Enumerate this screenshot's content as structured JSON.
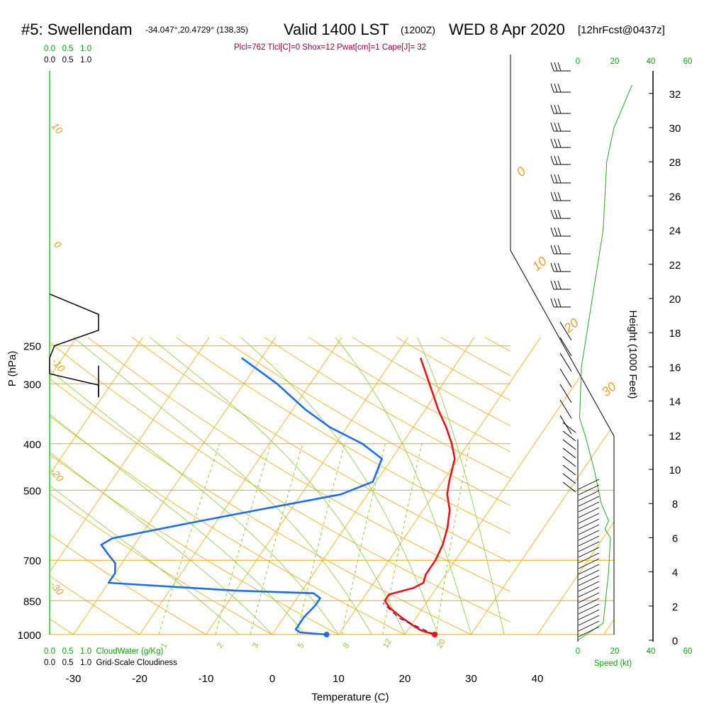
{
  "title": {
    "station": "#5: Swellendam",
    "coords": "-34.047°,20.4729° (138,35)",
    "valid": "Valid 1400 LST",
    "zulu": "(1200Z)",
    "date": "WED 8 Apr 2020",
    "forecast": "[12hrFcst@0437z]"
  },
  "indices": "Plcl=762 Tlcl[C]=0 Shox=12 Pwat[cm]=1 Cape[J]= 32",
  "top_scale": {
    "green": "0.0   0.5   1.0",
    "black": "0.0   0.5   1.0"
  },
  "bottom_scales": {
    "cloudwater": "0.0   0.5   1.0  CloudWater (g/Kg)",
    "cloudiness": "0.0   0.5   1.0  Grid-Scale Cloudiness"
  },
  "speed_label": "Speed (kt)",
  "colors": {
    "temperature": "#ee1111",
    "dewpoint": "#1a6fe8",
    "parcel": "#330066",
    "isotherm": "#f0a800",
    "mixing_ratio": "#88cc33",
    "speed_profile": "#22aa22",
    "label_green": "#00aa00",
    "indices": "#990044"
  },
  "chart_data": {
    "type": "line",
    "subtype": "skew-T log-P sounding",
    "xlabel": "Temperature (C)",
    "ylabel": "P (hPa)",
    "y2label": "Height (1000 Feet)",
    "xlim": [
      -35,
      36
    ],
    "ylim_hpa": [
      1000,
      250
    ],
    "x_ticks": [
      "-30",
      "-20",
      "-10",
      "0",
      "10",
      "20",
      "30",
      "40"
    ],
    "pressure_ticks": [
      "250",
      "300",
      "400",
      "500",
      "700",
      "850",
      "1000"
    ],
    "height_ticks": [
      "0",
      "2",
      "4",
      "6",
      "8",
      "10",
      "12",
      "14",
      "16",
      "18",
      "20",
      "22",
      "24",
      "26",
      "28",
      "30",
      "32"
    ],
    "speed_ticks": [
      "0",
      "20",
      "40",
      "60"
    ],
    "isotherm_labels": [
      "0",
      "10",
      "20",
      "30"
    ],
    "adiabat_labels": [
      "10",
      "0",
      "-10",
      "-20",
      "-30"
    ],
    "mixing_ratio_labels": [
      "1",
      "2",
      "3",
      "5",
      "8",
      "12",
      "20"
    ],
    "surface_temperature": 24.5,
    "surface_dewpoint": 8.2,
    "series": [
      {
        "name": "Temperature",
        "points": [
          [
            24.5,
            1000
          ],
          [
            22.0,
            980
          ],
          [
            20.5,
            960
          ],
          [
            18.0,
            925
          ],
          [
            15.0,
            880
          ],
          [
            13.5,
            850
          ],
          [
            13.5,
            825
          ],
          [
            16.5,
            800
          ],
          [
            17.5,
            780
          ],
          [
            17.0,
            750
          ],
          [
            17.0,
            700
          ],
          [
            16.5,
            650
          ],
          [
            15.5,
            600
          ],
          [
            14.0,
            550
          ],
          [
            12.0,
            510
          ],
          [
            11.0,
            480
          ],
          [
            9.5,
            430
          ],
          [
            7.5,
            400
          ],
          [
            5.0,
            370
          ],
          [
            2.0,
            340
          ],
          [
            -2.0,
            300
          ],
          [
            -6.0,
            265
          ]
        ]
      },
      {
        "name": "Dewpoint",
        "points": [
          [
            8.2,
            1000
          ],
          [
            4.0,
            990
          ],
          [
            3.0,
            975
          ],
          [
            3.0,
            920
          ],
          [
            3.5,
            870
          ],
          [
            3.5,
            840
          ],
          [
            2.0,
            820
          ],
          [
            -10.0,
            810
          ],
          [
            -30.0,
            780
          ],
          [
            -30.0,
            745
          ],
          [
            -31.0,
            710
          ],
          [
            -33.0,
            680
          ],
          [
            -35.0,
            650
          ],
          [
            -34.0,
            630
          ],
          [
            -25.0,
            590
          ],
          [
            -15.0,
            550
          ],
          [
            -4.0,
            510
          ],
          [
            -0.5,
            480
          ],
          [
            -1.5,
            430
          ],
          [
            -6.0,
            400
          ],
          [
            -12.5,
            370
          ],
          [
            -18.0,
            340
          ],
          [
            -25.0,
            300
          ],
          [
            -33.0,
            265
          ]
        ]
      },
      {
        "name": "Parcel",
        "points": [
          [
            24.5,
            1000
          ],
          [
            17.5,
            925
          ],
          [
            13.5,
            860
          ]
        ]
      }
    ],
    "speed_profile_kt": [
      [
        0,
        0.0
      ],
      [
        7,
        0.5
      ],
      [
        14,
        1.0
      ],
      [
        15,
        2.0
      ],
      [
        17,
        4.0
      ],
      [
        18,
        6.0
      ],
      [
        15,
        6.5
      ],
      [
        17,
        7.0
      ],
      [
        13,
        8.0
      ],
      [
        9,
        10.0
      ],
      [
        4,
        12.0
      ],
      [
        1,
        13.0
      ],
      [
        2,
        16.0
      ],
      [
        8,
        20.0
      ],
      [
        14,
        24.0
      ],
      [
        16,
        28.0
      ],
      [
        20,
        30.0
      ],
      [
        30,
        32.5
      ]
    ],
    "cloudiness_profile": [
      [
        1.0,
        320
      ],
      [
        1.0,
        302
      ],
      [
        0.0,
        286
      ],
      [
        0.0,
        265
      ],
      [
        0.1,
        250
      ],
      [
        1.0,
        232
      ],
      [
        1.0,
        215
      ],
      [
        0.0,
        195
      ]
    ]
  }
}
